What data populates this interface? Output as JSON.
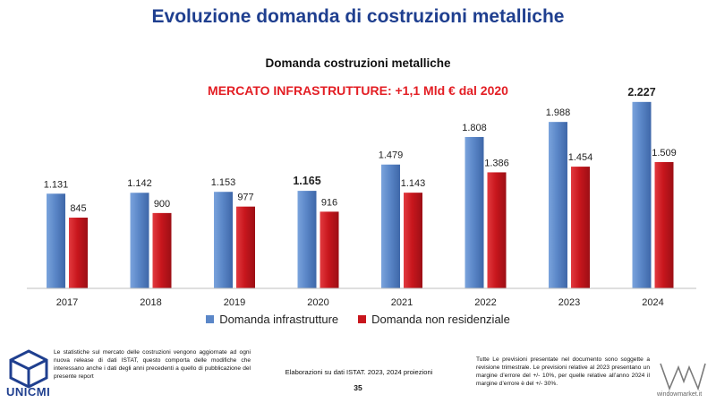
{
  "slide": {
    "title": "Evoluzione domanda di costruzioni metalliche",
    "note_left": "Le statistiche sul mercato delle costruzioni vengono aggiornate ad ogni nuova release di dati ISTAT, questo comporta delle modifiche che interessano anche i dati degli anni precedenti a quello di pubblicazione del presente report",
    "source": "Elaborazioni su dati ISTAT. 2023, 2024 proiezioni",
    "page_number": "35",
    "note_right": "Tutte Le previsioni presentate nel documento sono soggette a revisione trimestrale. Le previsioni relative al 2023 presentano un margine d’errore del +/- 10%, per quelle relative all’anno 2024 il margine d’errore è del +/- 30%.",
    "logo_left_text": "UNICMI",
    "logo_right_text": "windowmarket.it"
  },
  "chart_data": {
    "type": "bar",
    "title": "Domanda costruzioni metalliche",
    "subtitle": "MERCATO INFRASTRUTTURE: +1,1 Mld € dal 2020",
    "categories": [
      "2017",
      "2018",
      "2019",
      "2020",
      "2021",
      "2022",
      "2023",
      "2024"
    ],
    "series": [
      {
        "name": "Domanda infrastrutture",
        "color": "#5b87c8",
        "values": [
          1131,
          1142,
          1153,
          1165,
          1479,
          1808,
          1988,
          2227
        ],
        "labels": [
          "1.131",
          "1.142",
          "1.153",
          "1.165",
          "1.479",
          "1.808",
          "1.988",
          "2.227"
        ]
      },
      {
        "name": "Domanda non residenziale",
        "color": "#c8161d",
        "values": [
          845,
          900,
          977,
          916,
          1143,
          1386,
          1454,
          1509
        ],
        "labels": [
          "845",
          "900",
          "977",
          "916",
          "1.143",
          "1.386",
          "1.454",
          "1.509"
        ]
      }
    ],
    "bold_labels": [
      "1.165",
      "2.227"
    ],
    "ylim": [
      0,
      2300
    ],
    "grid": false,
    "legend_position": "bottom"
  }
}
